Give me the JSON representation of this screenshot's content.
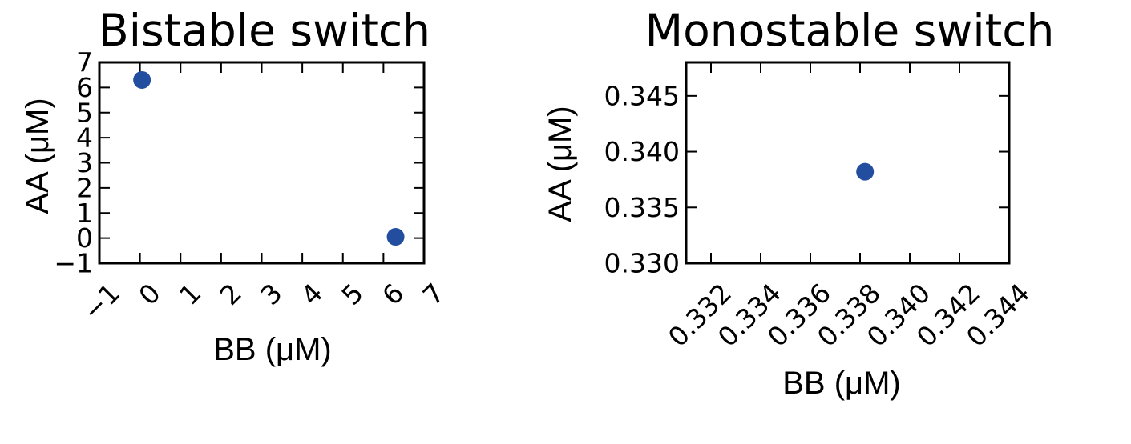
{
  "chart_data": [
    {
      "type": "scatter",
      "title": "Bistable switch",
      "xlabel": "BB (μM)",
      "ylabel": "AA (μM)",
      "xlim": [
        -1,
        7
      ],
      "ylim": [
        -1,
        7
      ],
      "xticks": [
        "−1",
        "0",
        "1",
        "2",
        "3",
        "4",
        "5",
        "6",
        "7"
      ],
      "xtick_values": [
        -1,
        0,
        1,
        2,
        3,
        4,
        5,
        6,
        7
      ],
      "yticks": [
        "−1",
        "0",
        "1",
        "2",
        "3",
        "4",
        "5",
        "6",
        "7"
      ],
      "ytick_values": [
        -1,
        0,
        1,
        2,
        3,
        4,
        5,
        6,
        7
      ],
      "xtick_rotation": "45",
      "grid": false,
      "color": "#234ea0",
      "points": [
        {
          "x": 0.05,
          "y": 6.3
        },
        {
          "x": 6.3,
          "y": 0.05
        }
      ]
    },
    {
      "type": "scatter",
      "title": "Monostable switch",
      "xlabel": "BB (μM)",
      "ylabel": "AA (μM)",
      "xlim": [
        0.331,
        0.344
      ],
      "ylim": [
        0.33,
        0.348
      ],
      "xticks": [
        "0.332",
        "0.334",
        "0.336",
        "0.338",
        "0.340",
        "0.342",
        "0.344"
      ],
      "xtick_values": [
        0.332,
        0.334,
        0.336,
        0.338,
        0.34,
        0.342,
        0.344
      ],
      "yticks": [
        "0.330",
        "0.335",
        "0.340",
        "0.345"
      ],
      "ytick_values": [
        0.33,
        0.335,
        0.34,
        0.345
      ],
      "xtick_rotation": "45",
      "grid": false,
      "color": "#234ea0",
      "points": [
        {
          "x": 0.3382,
          "y": 0.3382
        }
      ]
    }
  ]
}
